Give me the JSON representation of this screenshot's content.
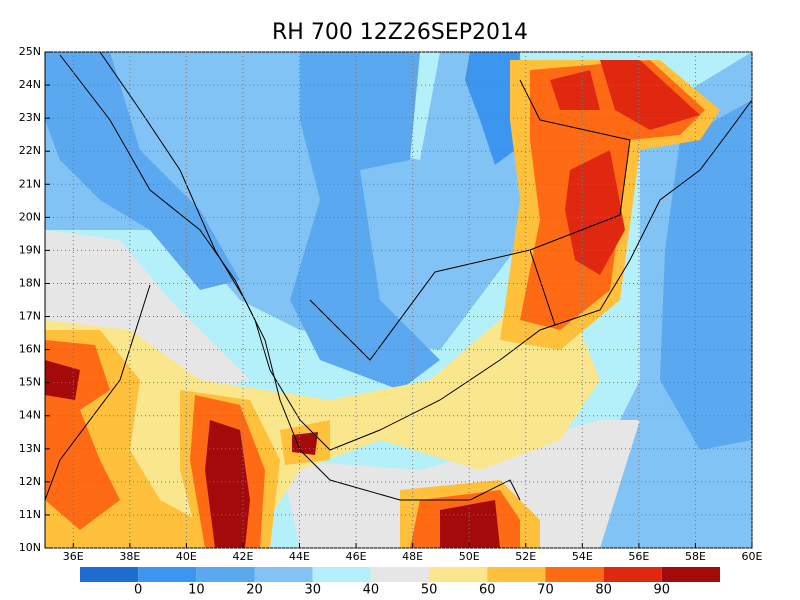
{
  "map": {
    "type": "contour",
    "title": "RH 700 12Z26SEP2014",
    "xlim": [
      35,
      60
    ],
    "ylim": [
      10,
      25
    ],
    "xticks": [
      {
        "value": 36,
        "label": "36E"
      },
      {
        "value": 38,
        "label": "38E"
      },
      {
        "value": 40,
        "label": "40E"
      },
      {
        "value": 42,
        "label": "42E"
      },
      {
        "value": 44,
        "label": "44E"
      },
      {
        "value": 46,
        "label": "46E"
      },
      {
        "value": 48,
        "label": "48E"
      },
      {
        "value": 50,
        "label": "50E"
      },
      {
        "value": 52,
        "label": "52E"
      },
      {
        "value": 54,
        "label": "54E"
      },
      {
        "value": 56,
        "label": "56E"
      },
      {
        "value": 58,
        "label": "58E"
      },
      {
        "value": 60,
        "label": "60E"
      }
    ],
    "yticks": [
      {
        "value": 10,
        "label": "10N"
      },
      {
        "value": 11,
        "label": "11N"
      },
      {
        "value": 12,
        "label": "12N"
      },
      {
        "value": 13,
        "label": "13N"
      },
      {
        "value": 14,
        "label": "14N"
      },
      {
        "value": 15,
        "label": "15N"
      },
      {
        "value": 16,
        "label": "16N"
      },
      {
        "value": 17,
        "label": "17N"
      },
      {
        "value": 18,
        "label": "18N"
      },
      {
        "value": 19,
        "label": "19N"
      },
      {
        "value": 20,
        "label": "20N"
      },
      {
        "value": 21,
        "label": "21N"
      },
      {
        "value": 22,
        "label": "22N"
      },
      {
        "value": 23,
        "label": "23N"
      },
      {
        "value": 24,
        "label": "24N"
      },
      {
        "value": 25,
        "label": "25N"
      }
    ],
    "grid": true,
    "colorbar": {
      "levels": [
        0,
        10,
        20,
        30,
        40,
        50,
        60,
        70,
        80,
        90
      ],
      "colors": [
        "#1e6ed2",
        "#3c96f0",
        "#5aa8f0",
        "#82c3f5",
        "#b4f0fa",
        "#e6e6e6",
        "#fae68c",
        "#ffc03c",
        "#ff6a14",
        "#e02810",
        "#a50a0a"
      ]
    }
  }
}
